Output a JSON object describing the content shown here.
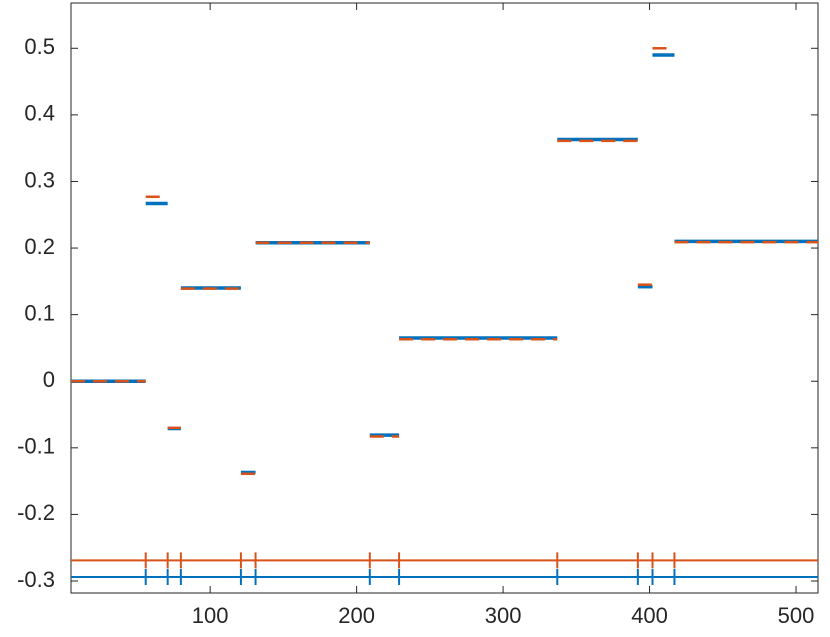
{
  "chart_data": {
    "type": "step",
    "breaks": [
      56,
      71,
      80,
      121,
      131,
      209,
      229,
      337,
      392,
      402,
      417
    ],
    "series": [
      {
        "color": "#0072bd",
        "line_style": "solid",
        "marker_level": -0.294,
        "values": [
          0,
          0.267,
          -0.071,
          0.14,
          -0.137,
          0.208,
          -0.081,
          0.065,
          0.363,
          0.142,
          0.49,
          0.21
        ]
      },
      {
        "color": "#d95319",
        "line_style": "dashed",
        "marker_level": -0.269,
        "values": [
          0,
          0.277,
          -0.07,
          0.139,
          -0.139,
          0.208,
          -0.083,
          0.063,
          0.361,
          0.145,
          0.5,
          0.209
        ]
      }
    ],
    "xlim": [
      5,
      515
    ],
    "ylim": [
      -0.318,
      0.568
    ],
    "xticks": [
      100,
      200,
      300,
      400,
      500
    ],
    "yticks": [
      -0.3,
      -0.2,
      -0.1,
      0,
      0.1,
      0.2,
      0.3,
      0.4,
      0.5
    ]
  }
}
